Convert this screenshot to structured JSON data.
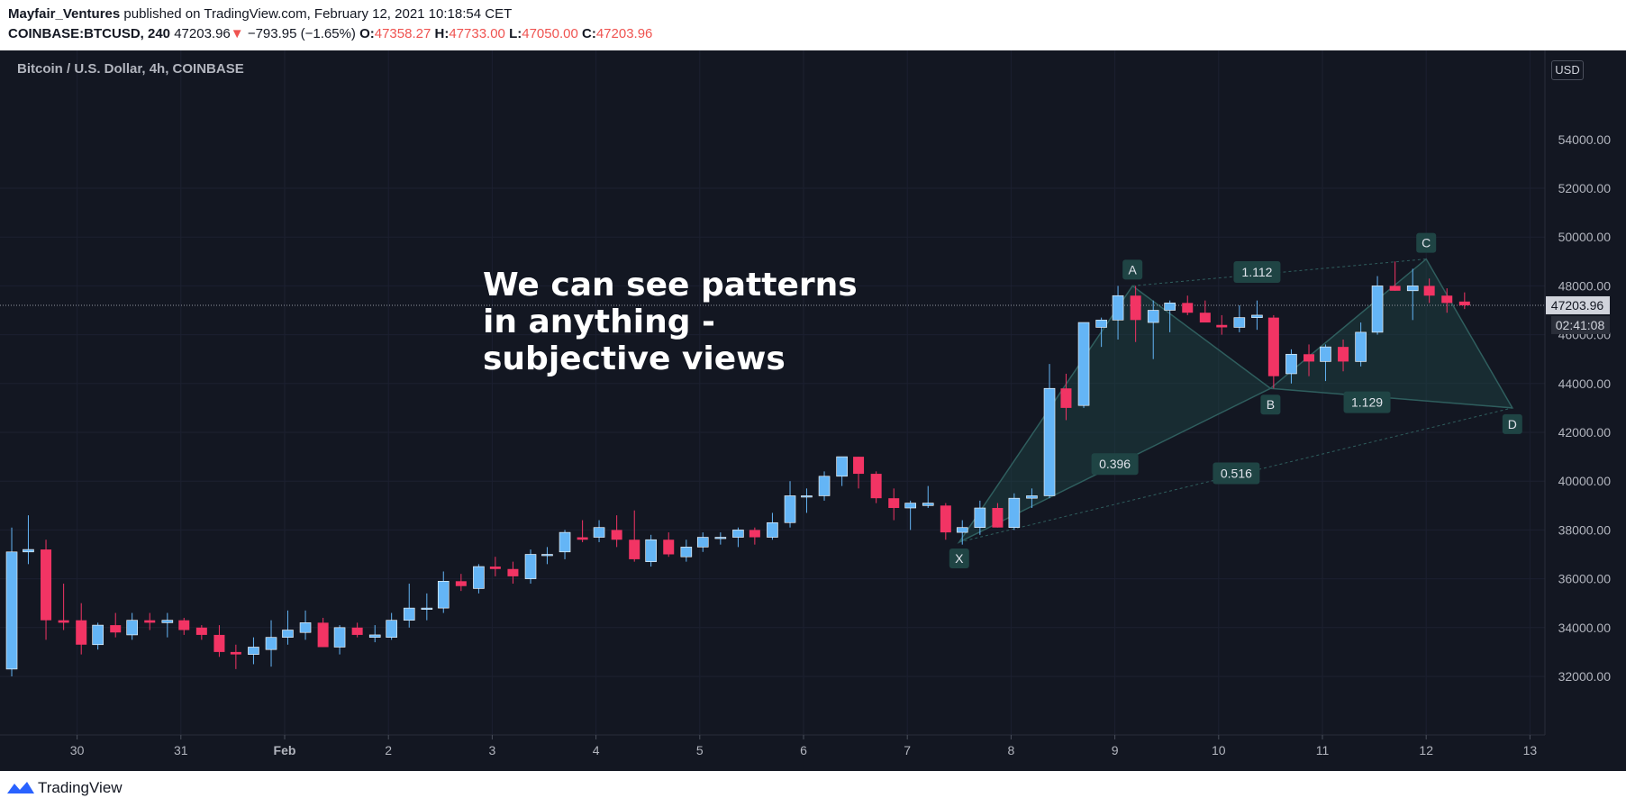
{
  "header": {
    "author": "Mayfair_Ventures",
    "published": "published on TradingView.com, February 12, 2021 10:18:54 CET",
    "symbol": "COINBASE:BTCUSD, 240",
    "last": "47203.96",
    "change_arrow": "▼",
    "change": "−793.95 (−1.65%)",
    "open_label": "O:",
    "open": "47358.27",
    "high_label": "H:",
    "high": "47733.00",
    "low_label": "L:",
    "low": "47050.00",
    "close_label": "C:",
    "close": "47203.96"
  },
  "chart": {
    "pane_title": "Bitcoin / U.S. Dollar, 4h, COINBASE",
    "currency_button": "USD",
    "countdown": "02:41:08",
    "annotation": [
      "We can see patterns",
      "in anything -",
      "subjective views"
    ]
  },
  "footer": {
    "brand": "TradingView"
  },
  "colors": {
    "background": "#131722",
    "bull": "#64b5f6",
    "bear": "#f23464",
    "pattern_fill": "#1e4747",
    "pattern_line": "#2f5e5e",
    "label_bg": "#1f4444"
  },
  "chart_data": {
    "type": "candlestick",
    "title": "Bitcoin / U.S. Dollar, 4h, COINBASE",
    "ylim": [
      30000,
      54500
    ],
    "y_ticks": [
      "32000.00",
      "34000.00",
      "36000.00",
      "38000.00",
      "40000.00",
      "42000.00",
      "44000.00",
      "46000.00",
      "48000.00",
      "50000.00",
      "52000.00"
    ],
    "y_top_partial": "54000.00",
    "x_ticks": [
      {
        "label": "30",
        "day": -2
      },
      {
        "label": "31",
        "day": -1
      },
      {
        "label": "Feb",
        "day": 0
      },
      {
        "label": "2",
        "day": 1
      },
      {
        "label": "3",
        "day": 2
      },
      {
        "label": "4",
        "day": 3
      },
      {
        "label": "5",
        "day": 4
      },
      {
        "label": "6",
        "day": 5
      },
      {
        "label": "7",
        "day": 6
      },
      {
        "label": "8",
        "day": 7
      },
      {
        "label": "9",
        "day": 8
      },
      {
        "label": "10",
        "day": 9
      },
      {
        "label": "11",
        "day": 10
      },
      {
        "label": "12",
        "day": 11
      },
      {
        "label": "13",
        "day": 12
      }
    ],
    "last_price": 47203.96,
    "candles": [
      {
        "t": -2.63,
        "o": 32300,
        "h": 38100,
        "l": 32000,
        "c": 37100
      },
      {
        "t": -2.47,
        "o": 37100,
        "h": 38600,
        "l": 36600,
        "c": 37200
      },
      {
        "t": -2.3,
        "o": 37200,
        "h": 37600,
        "l": 33500,
        "c": 34300
      },
      {
        "t": -2.13,
        "o": 34300,
        "h": 35800,
        "l": 33900,
        "c": 34200
      },
      {
        "t": -1.96,
        "o": 34300,
        "h": 35000,
        "l": 32900,
        "c": 33300
      },
      {
        "t": -1.8,
        "o": 33300,
        "h": 34200,
        "l": 33100,
        "c": 34100
      },
      {
        "t": -1.63,
        "o": 34100,
        "h": 34600,
        "l": 33600,
        "c": 33800
      },
      {
        "t": -1.47,
        "o": 33700,
        "h": 34600,
        "l": 33500,
        "c": 34300
      },
      {
        "t": -1.3,
        "o": 34300,
        "h": 34600,
        "l": 33900,
        "c": 34200
      },
      {
        "t": -1.13,
        "o": 34200,
        "h": 34600,
        "l": 33600,
        "c": 34300
      },
      {
        "t": -0.97,
        "o": 34300,
        "h": 34400,
        "l": 33700,
        "c": 33900
      },
      {
        "t": -0.8,
        "o": 34000,
        "h": 34100,
        "l": 33500,
        "c": 33700
      },
      {
        "t": -0.63,
        "o": 33700,
        "h": 34100,
        "l": 32800,
        "c": 33000
      },
      {
        "t": -0.47,
        "o": 33000,
        "h": 33300,
        "l": 32300,
        "c": 32900
      },
      {
        "t": -0.3,
        "o": 32900,
        "h": 33600,
        "l": 32500,
        "c": 33200
      },
      {
        "t": -0.13,
        "o": 33100,
        "h": 34300,
        "l": 32400,
        "c": 33600
      },
      {
        "t": 0.03,
        "o": 33600,
        "h": 34700,
        "l": 33300,
        "c": 33900
      },
      {
        "t": 0.2,
        "o": 33800,
        "h": 34700,
        "l": 33500,
        "c": 34200
      },
      {
        "t": 0.37,
        "o": 34200,
        "h": 34400,
        "l": 33200,
        "c": 33200
      },
      {
        "t": 0.53,
        "o": 33200,
        "h": 34100,
        "l": 32900,
        "c": 34000
      },
      {
        "t": 0.7,
        "o": 34000,
        "h": 34200,
        "l": 33600,
        "c": 33700
      },
      {
        "t": 0.87,
        "o": 33600,
        "h": 34100,
        "l": 33400,
        "c": 33700
      },
      {
        "t": 1.03,
        "o": 33600,
        "h": 34600,
        "l": 33500,
        "c": 34300
      },
      {
        "t": 1.2,
        "o": 34300,
        "h": 35800,
        "l": 34000,
        "c": 34800
      },
      {
        "t": 1.37,
        "o": 34800,
        "h": 35400,
        "l": 34300,
        "c": 34800
      },
      {
        "t": 1.53,
        "o": 34800,
        "h": 36300,
        "l": 34600,
        "c": 35900
      },
      {
        "t": 1.7,
        "o": 35900,
        "h": 36200,
        "l": 35500,
        "c": 35700
      },
      {
        "t": 1.87,
        "o": 35600,
        "h": 36600,
        "l": 35400,
        "c": 36500
      },
      {
        "t": 2.03,
        "o": 36500,
        "h": 36900,
        "l": 36100,
        "c": 36400
      },
      {
        "t": 2.2,
        "o": 36400,
        "h": 36700,
        "l": 35800,
        "c": 36100
      },
      {
        "t": 2.37,
        "o": 36000,
        "h": 37200,
        "l": 35800,
        "c": 37000
      },
      {
        "t": 2.53,
        "o": 37000,
        "h": 37300,
        "l": 36600,
        "c": 37000
      },
      {
        "t": 2.7,
        "o": 37100,
        "h": 38000,
        "l": 36800,
        "c": 37900
      },
      {
        "t": 2.87,
        "o": 37700,
        "h": 38400,
        "l": 37500,
        "c": 37600
      },
      {
        "t": 3.03,
        "o": 37700,
        "h": 38400,
        "l": 37500,
        "c": 38100
      },
      {
        "t": 3.2,
        "o": 38000,
        "h": 38600,
        "l": 37300,
        "c": 37600
      },
      {
        "t": 3.37,
        "o": 37600,
        "h": 38800,
        "l": 36700,
        "c": 36800
      },
      {
        "t": 3.53,
        "o": 36700,
        "h": 37800,
        "l": 36500,
        "c": 37600
      },
      {
        "t": 3.7,
        "o": 37600,
        "h": 37900,
        "l": 36900,
        "c": 37000
      },
      {
        "t": 3.87,
        "o": 36900,
        "h": 37600,
        "l": 36700,
        "c": 37300
      },
      {
        "t": 4.03,
        "o": 37300,
        "h": 37900,
        "l": 37100,
        "c": 37700
      },
      {
        "t": 4.2,
        "o": 37700,
        "h": 37900,
        "l": 37400,
        "c": 37700
      },
      {
        "t": 4.37,
        "o": 37700,
        "h": 38100,
        "l": 37300,
        "c": 38000
      },
      {
        "t": 4.53,
        "o": 38000,
        "h": 38100,
        "l": 37400,
        "c": 37700
      },
      {
        "t": 4.7,
        "o": 37700,
        "h": 38700,
        "l": 37600,
        "c": 38300
      },
      {
        "t": 4.87,
        "o": 38300,
        "h": 40000,
        "l": 38100,
        "c": 39400
      },
      {
        "t": 5.03,
        "o": 39400,
        "h": 39700,
        "l": 38700,
        "c": 39400
      },
      {
        "t": 5.2,
        "o": 39400,
        "h": 40400,
        "l": 39200,
        "c": 40200
      },
      {
        "t": 5.37,
        "o": 40200,
        "h": 41000,
        "l": 39800,
        "c": 41000
      },
      {
        "t": 5.53,
        "o": 41000,
        "h": 41000,
        "l": 39700,
        "c": 40300
      },
      {
        "t": 5.7,
        "o": 40300,
        "h": 40400,
        "l": 39100,
        "c": 39300
      },
      {
        "t": 5.87,
        "o": 39300,
        "h": 39700,
        "l": 38400,
        "c": 38900
      },
      {
        "t": 6.03,
        "o": 38900,
        "h": 39200,
        "l": 38000,
        "c": 39100
      },
      {
        "t": 6.2,
        "o": 39000,
        "h": 39800,
        "l": 38900,
        "c": 39100
      },
      {
        "t": 6.37,
        "o": 39000,
        "h": 39100,
        "l": 37600,
        "c": 37900
      },
      {
        "t": 6.53,
        "o": 37900,
        "h": 38400,
        "l": 37400,
        "c": 38100
      },
      {
        "t": 6.7,
        "o": 38100,
        "h": 39200,
        "l": 37800,
        "c": 38900
      },
      {
        "t": 6.87,
        "o": 38900,
        "h": 39100,
        "l": 38100,
        "c": 38100
      },
      {
        "t": 7.03,
        "o": 38100,
        "h": 39500,
        "l": 38000,
        "c": 39300
      },
      {
        "t": 7.2,
        "o": 39300,
        "h": 39700,
        "l": 38900,
        "c": 39400
      },
      {
        "t": 7.37,
        "o": 39400,
        "h": 44800,
        "l": 39300,
        "c": 43800
      },
      {
        "t": 7.53,
        "o": 43800,
        "h": 44400,
        "l": 42500,
        "c": 43000
      },
      {
        "t": 7.7,
        "o": 43100,
        "h": 46500,
        "l": 43000,
        "c": 46500
      },
      {
        "t": 7.87,
        "o": 46300,
        "h": 46700,
        "l": 45500,
        "c": 46600
      },
      {
        "t": 8.03,
        "o": 46600,
        "h": 48000,
        "l": 45800,
        "c": 47600
      },
      {
        "t": 8.2,
        "o": 47600,
        "h": 48000,
        "l": 45700,
        "c": 46600
      },
      {
        "t": 8.37,
        "o": 46500,
        "h": 47400,
        "l": 45000,
        "c": 47000
      },
      {
        "t": 8.53,
        "o": 47000,
        "h": 47400,
        "l": 46100,
        "c": 47300
      },
      {
        "t": 8.7,
        "o": 47300,
        "h": 47600,
        "l": 46800,
        "c": 46900
      },
      {
        "t": 8.87,
        "o": 46900,
        "h": 47400,
        "l": 46600,
        "c": 46500
      },
      {
        "t": 9.03,
        "o": 46400,
        "h": 46800,
        "l": 46000,
        "c": 46300
      },
      {
        "t": 9.2,
        "o": 46300,
        "h": 47200,
        "l": 46100,
        "c": 46700
      },
      {
        "t": 9.37,
        "o": 46700,
        "h": 47400,
        "l": 46200,
        "c": 46800
      },
      {
        "t": 9.53,
        "o": 46700,
        "h": 46800,
        "l": 43800,
        "c": 44300
      },
      {
        "t": 9.7,
        "o": 44400,
        "h": 45400,
        "l": 44000,
        "c": 45200
      },
      {
        "t": 9.87,
        "o": 45200,
        "h": 45600,
        "l": 44300,
        "c": 44900
      },
      {
        "t": 10.03,
        "o": 44900,
        "h": 45600,
        "l": 44100,
        "c": 45500
      },
      {
        "t": 10.2,
        "o": 45500,
        "h": 45800,
        "l": 44500,
        "c": 44900
      },
      {
        "t": 10.37,
        "o": 44900,
        "h": 46500,
        "l": 44700,
        "c": 46100
      },
      {
        "t": 10.53,
        "o": 46100,
        "h": 48400,
        "l": 46000,
        "c": 48000
      },
      {
        "t": 10.7,
        "o": 48000,
        "h": 49000,
        "l": 47800,
        "c": 47800
      },
      {
        "t": 10.87,
        "o": 47800,
        "h": 48700,
        "l": 46600,
        "c": 48000
      },
      {
        "t": 11.03,
        "o": 48000,
        "h": 48300,
        "l": 47300,
        "c": 47600
      },
      {
        "t": 11.2,
        "o": 47600,
        "h": 47900,
        "l": 46900,
        "c": 47300
      },
      {
        "t": 11.37,
        "o": 47358.27,
        "h": 47733,
        "l": 47050,
        "c": 47203.96
      }
    ],
    "harmonic_pattern": {
      "points": [
        {
          "label": "X",
          "day": 6.5,
          "price": 37500
        },
        {
          "label": "A",
          "day": 8.17,
          "price": 48000
        },
        {
          "label": "B",
          "day": 9.5,
          "price": 43800
        },
        {
          "label": "C",
          "day": 11.0,
          "price": 49100
        },
        {
          "label": "D",
          "day": 11.83,
          "price": 43000
        }
      ],
      "ratios": [
        {
          "label": "0.396",
          "day": 8.0,
          "price": 40700
        },
        {
          "label": "1.112",
          "day": 9.37,
          "price": 48570
        },
        {
          "label": "1.129",
          "day": 10.43,
          "price": 43230
        },
        {
          "label": "0.516",
          "day": 9.17,
          "price": 40320
        }
      ]
    }
  }
}
